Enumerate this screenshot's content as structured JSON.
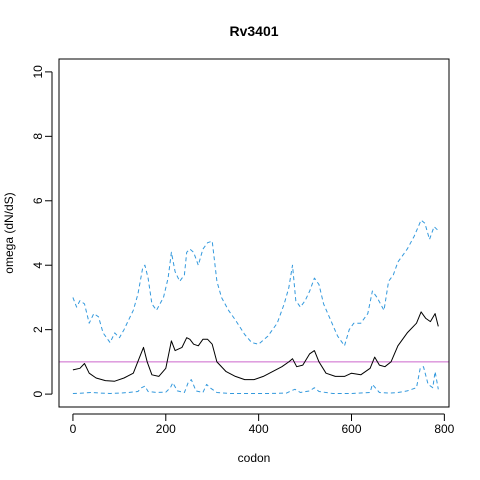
{
  "chart_data": {
    "type": "line",
    "title": "Rv3401",
    "xlabel": "codon",
    "ylabel": "omega (dN/dS)",
    "xlim": [
      -30,
      810
    ],
    "ylim": [
      -0.4,
      10.4
    ],
    "xticks": [
      0,
      200,
      400,
      600,
      800
    ],
    "yticks": [
      0,
      2,
      4,
      6,
      8,
      10
    ],
    "grid": false,
    "reference_line": {
      "y": 1,
      "color": "#cc66cc"
    },
    "series": [
      {
        "style": "solid",
        "color": "#000000",
        "x": [
          0,
          15,
          25,
          35,
          50,
          70,
          90,
          110,
          130,
          145,
          152,
          160,
          170,
          185,
          200,
          212,
          220,
          235,
          245,
          252,
          260,
          270,
          280,
          290,
          300,
          310,
          330,
          350,
          370,
          390,
          410,
          430,
          450,
          465,
          473,
          482,
          495,
          510,
          520,
          530,
          545,
          565,
          585,
          600,
          620,
          640,
          650,
          660,
          672,
          685,
          700,
          720,
          740,
          750,
          760,
          770,
          780,
          787
        ],
        "y": [
          0.75,
          0.8,
          0.95,
          0.65,
          0.5,
          0.42,
          0.4,
          0.5,
          0.65,
          1.2,
          1.45,
          1.0,
          0.6,
          0.55,
          0.8,
          1.65,
          1.35,
          1.45,
          1.75,
          1.7,
          1.55,
          1.5,
          1.7,
          1.7,
          1.55,
          1.0,
          0.7,
          0.55,
          0.45,
          0.45,
          0.55,
          0.7,
          0.85,
          1.0,
          1.1,
          0.85,
          0.9,
          1.25,
          1.35,
          1.0,
          0.65,
          0.55,
          0.55,
          0.65,
          0.6,
          0.8,
          1.15,
          0.9,
          0.85,
          1.0,
          1.5,
          1.9,
          2.2,
          2.55,
          2.35,
          2.25,
          2.5,
          2.1
        ]
      },
      {
        "style": "dashed",
        "color": "#3399dd",
        "x": [
          0,
          8,
          15,
          25,
          35,
          45,
          55,
          65,
          80,
          90,
          100,
          110,
          120,
          130,
          140,
          150,
          155,
          162,
          170,
          180,
          195,
          205,
          212,
          220,
          230,
          240,
          245,
          252,
          260,
          270,
          280,
          290,
          300,
          310,
          320,
          335,
          350,
          370,
          385,
          400,
          420,
          440,
          455,
          465,
          473,
          480,
          490,
          500,
          510,
          520,
          530,
          540,
          555,
          570,
          585,
          595,
          605,
          620,
          635,
          645,
          655,
          670,
          680,
          690,
          700,
          710,
          720,
          735,
          750,
          758,
          768,
          778,
          785
        ],
        "y": [
          3.0,
          2.7,
          2.9,
          2.8,
          2.2,
          2.5,
          2.4,
          1.9,
          1.6,
          1.9,
          1.75,
          2.0,
          2.3,
          2.6,
          3.1,
          3.9,
          4.0,
          3.6,
          2.8,
          2.6,
          3.0,
          3.6,
          4.4,
          3.8,
          3.5,
          3.7,
          4.4,
          4.5,
          4.4,
          4.0,
          4.5,
          4.7,
          4.75,
          3.5,
          3.0,
          2.6,
          2.3,
          1.85,
          1.6,
          1.55,
          1.8,
          2.2,
          2.8,
          3.3,
          4.0,
          2.9,
          2.7,
          2.9,
          3.2,
          3.6,
          3.4,
          2.8,
          2.3,
          1.8,
          1.5,
          2.0,
          2.2,
          2.2,
          2.5,
          3.2,
          3.0,
          2.6,
          3.5,
          3.7,
          4.1,
          4.3,
          4.5,
          4.9,
          5.4,
          5.3,
          4.8,
          5.2,
          5.1
        ]
      },
      {
        "style": "dashed",
        "color": "#3399dd",
        "x": [
          0,
          20,
          40,
          60,
          80,
          100,
          120,
          140,
          148,
          155,
          162,
          180,
          200,
          210,
          215,
          225,
          240,
          248,
          255,
          265,
          280,
          288,
          295,
          310,
          340,
          380,
          420,
          460,
          470,
          478,
          490,
          510,
          520,
          530,
          560,
          600,
          640,
          645,
          660,
          680,
          700,
          720,
          740,
          748,
          755,
          765,
          775,
          780,
          787
        ],
        "y": [
          0.02,
          0.03,
          0.05,
          0.03,
          0.02,
          0.03,
          0.05,
          0.08,
          0.2,
          0.25,
          0.08,
          0.05,
          0.06,
          0.2,
          0.35,
          0.1,
          0.05,
          0.35,
          0.45,
          0.1,
          0.05,
          0.3,
          0.2,
          0.05,
          0.02,
          0.02,
          0.02,
          0.03,
          0.1,
          0.15,
          0.05,
          0.1,
          0.2,
          0.08,
          0.02,
          0.02,
          0.05,
          0.3,
          0.05,
          0.03,
          0.05,
          0.1,
          0.2,
          0.8,
          0.85,
          0.3,
          0.2,
          0.7,
          0.15
        ]
      }
    ]
  }
}
